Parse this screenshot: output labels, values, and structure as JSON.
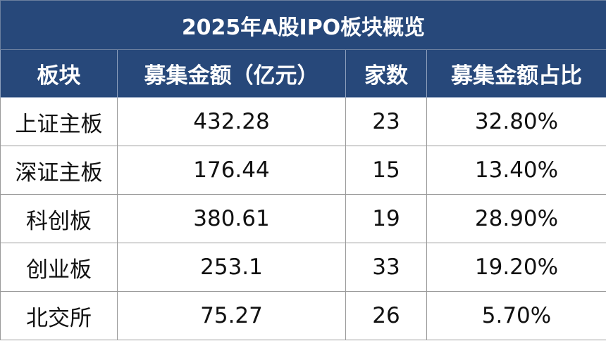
{
  "table": {
    "title": "2025年A股IPO板块概览",
    "header": [
      "板块",
      "募集金额（亿元）",
      "家数",
      "募集金额占比"
    ],
    "rows": [
      [
        "上证主板",
        "432.28",
        "23",
        "32.80%"
      ],
      [
        "深证主板",
        "176.44",
        "15",
        "13.40%"
      ],
      [
        "科创板",
        "380.61",
        "19",
        "28.90%"
      ],
      [
        "创业板",
        "253.1",
        "33",
        "19.20%"
      ],
      [
        "北交所",
        "75.27",
        "26",
        "5.70%"
      ]
    ]
  }
}
